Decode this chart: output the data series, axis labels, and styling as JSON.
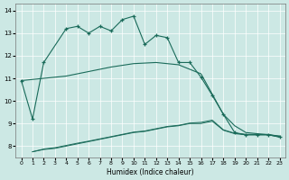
{
  "xlabel": "Humidex (Indice chaleur)",
  "bg_color": "#cce8e4",
  "line_color": "#1a6b5a",
  "grid_color": "#ffffff",
  "xlim": [
    -0.5,
    23.5
  ],
  "ylim": [
    7.5,
    14.3
  ],
  "xticks": [
    0,
    1,
    2,
    3,
    4,
    5,
    6,
    7,
    8,
    9,
    10,
    11,
    12,
    13,
    14,
    15,
    16,
    17,
    18,
    19,
    20,
    21,
    22,
    23
  ],
  "yticks": [
    8,
    9,
    10,
    11,
    12,
    13,
    14
  ],
  "line_main_x": [
    0,
    1,
    2,
    4,
    5,
    6,
    7,
    8,
    9,
    10,
    11,
    12,
    13,
    14,
    15,
    16,
    17,
    18,
    19,
    20,
    21,
    22,
    23
  ],
  "line_main_y": [
    10.9,
    9.2,
    11.7,
    13.2,
    13.3,
    13.0,
    13.3,
    13.1,
    13.6,
    13.75,
    12.5,
    12.9,
    12.8,
    11.7,
    11.7,
    11.05,
    10.25,
    9.4,
    8.6,
    8.5,
    8.5,
    8.5,
    8.4
  ],
  "line_diag_x": [
    0,
    2,
    4,
    6,
    8,
    10,
    12,
    14,
    16,
    18,
    19,
    20,
    21,
    22,
    23
  ],
  "line_diag_y": [
    10.9,
    11.0,
    11.1,
    11.3,
    11.5,
    11.65,
    11.7,
    11.6,
    11.2,
    9.4,
    8.9,
    8.6,
    8.55,
    8.5,
    8.45
  ],
  "line_low1_x": [
    1,
    2,
    3,
    4,
    5,
    6,
    7,
    8,
    9,
    10,
    11,
    12,
    13,
    14,
    15,
    16,
    17,
    18,
    19,
    20,
    21,
    22,
    23
  ],
  "line_low1_y": [
    7.75,
    7.85,
    7.9,
    8.0,
    8.1,
    8.2,
    8.3,
    8.4,
    8.5,
    8.6,
    8.65,
    8.75,
    8.85,
    8.9,
    9.0,
    9.0,
    9.1,
    8.7,
    8.55,
    8.5,
    8.5,
    8.5,
    8.4
  ],
  "line_low2_x": [
    1,
    2,
    3,
    4,
    5,
    6,
    7,
    8,
    9,
    10,
    11,
    12,
    13,
    14,
    15,
    16,
    17,
    18,
    19,
    20,
    21,
    22,
    23
  ],
  "line_low2_y": [
    7.75,
    7.87,
    7.93,
    8.03,
    8.13,
    8.22,
    8.32,
    8.42,
    8.52,
    8.62,
    8.67,
    8.77,
    8.87,
    8.92,
    9.02,
    9.05,
    9.15,
    8.72,
    8.57,
    8.52,
    8.52,
    8.52,
    8.42
  ]
}
